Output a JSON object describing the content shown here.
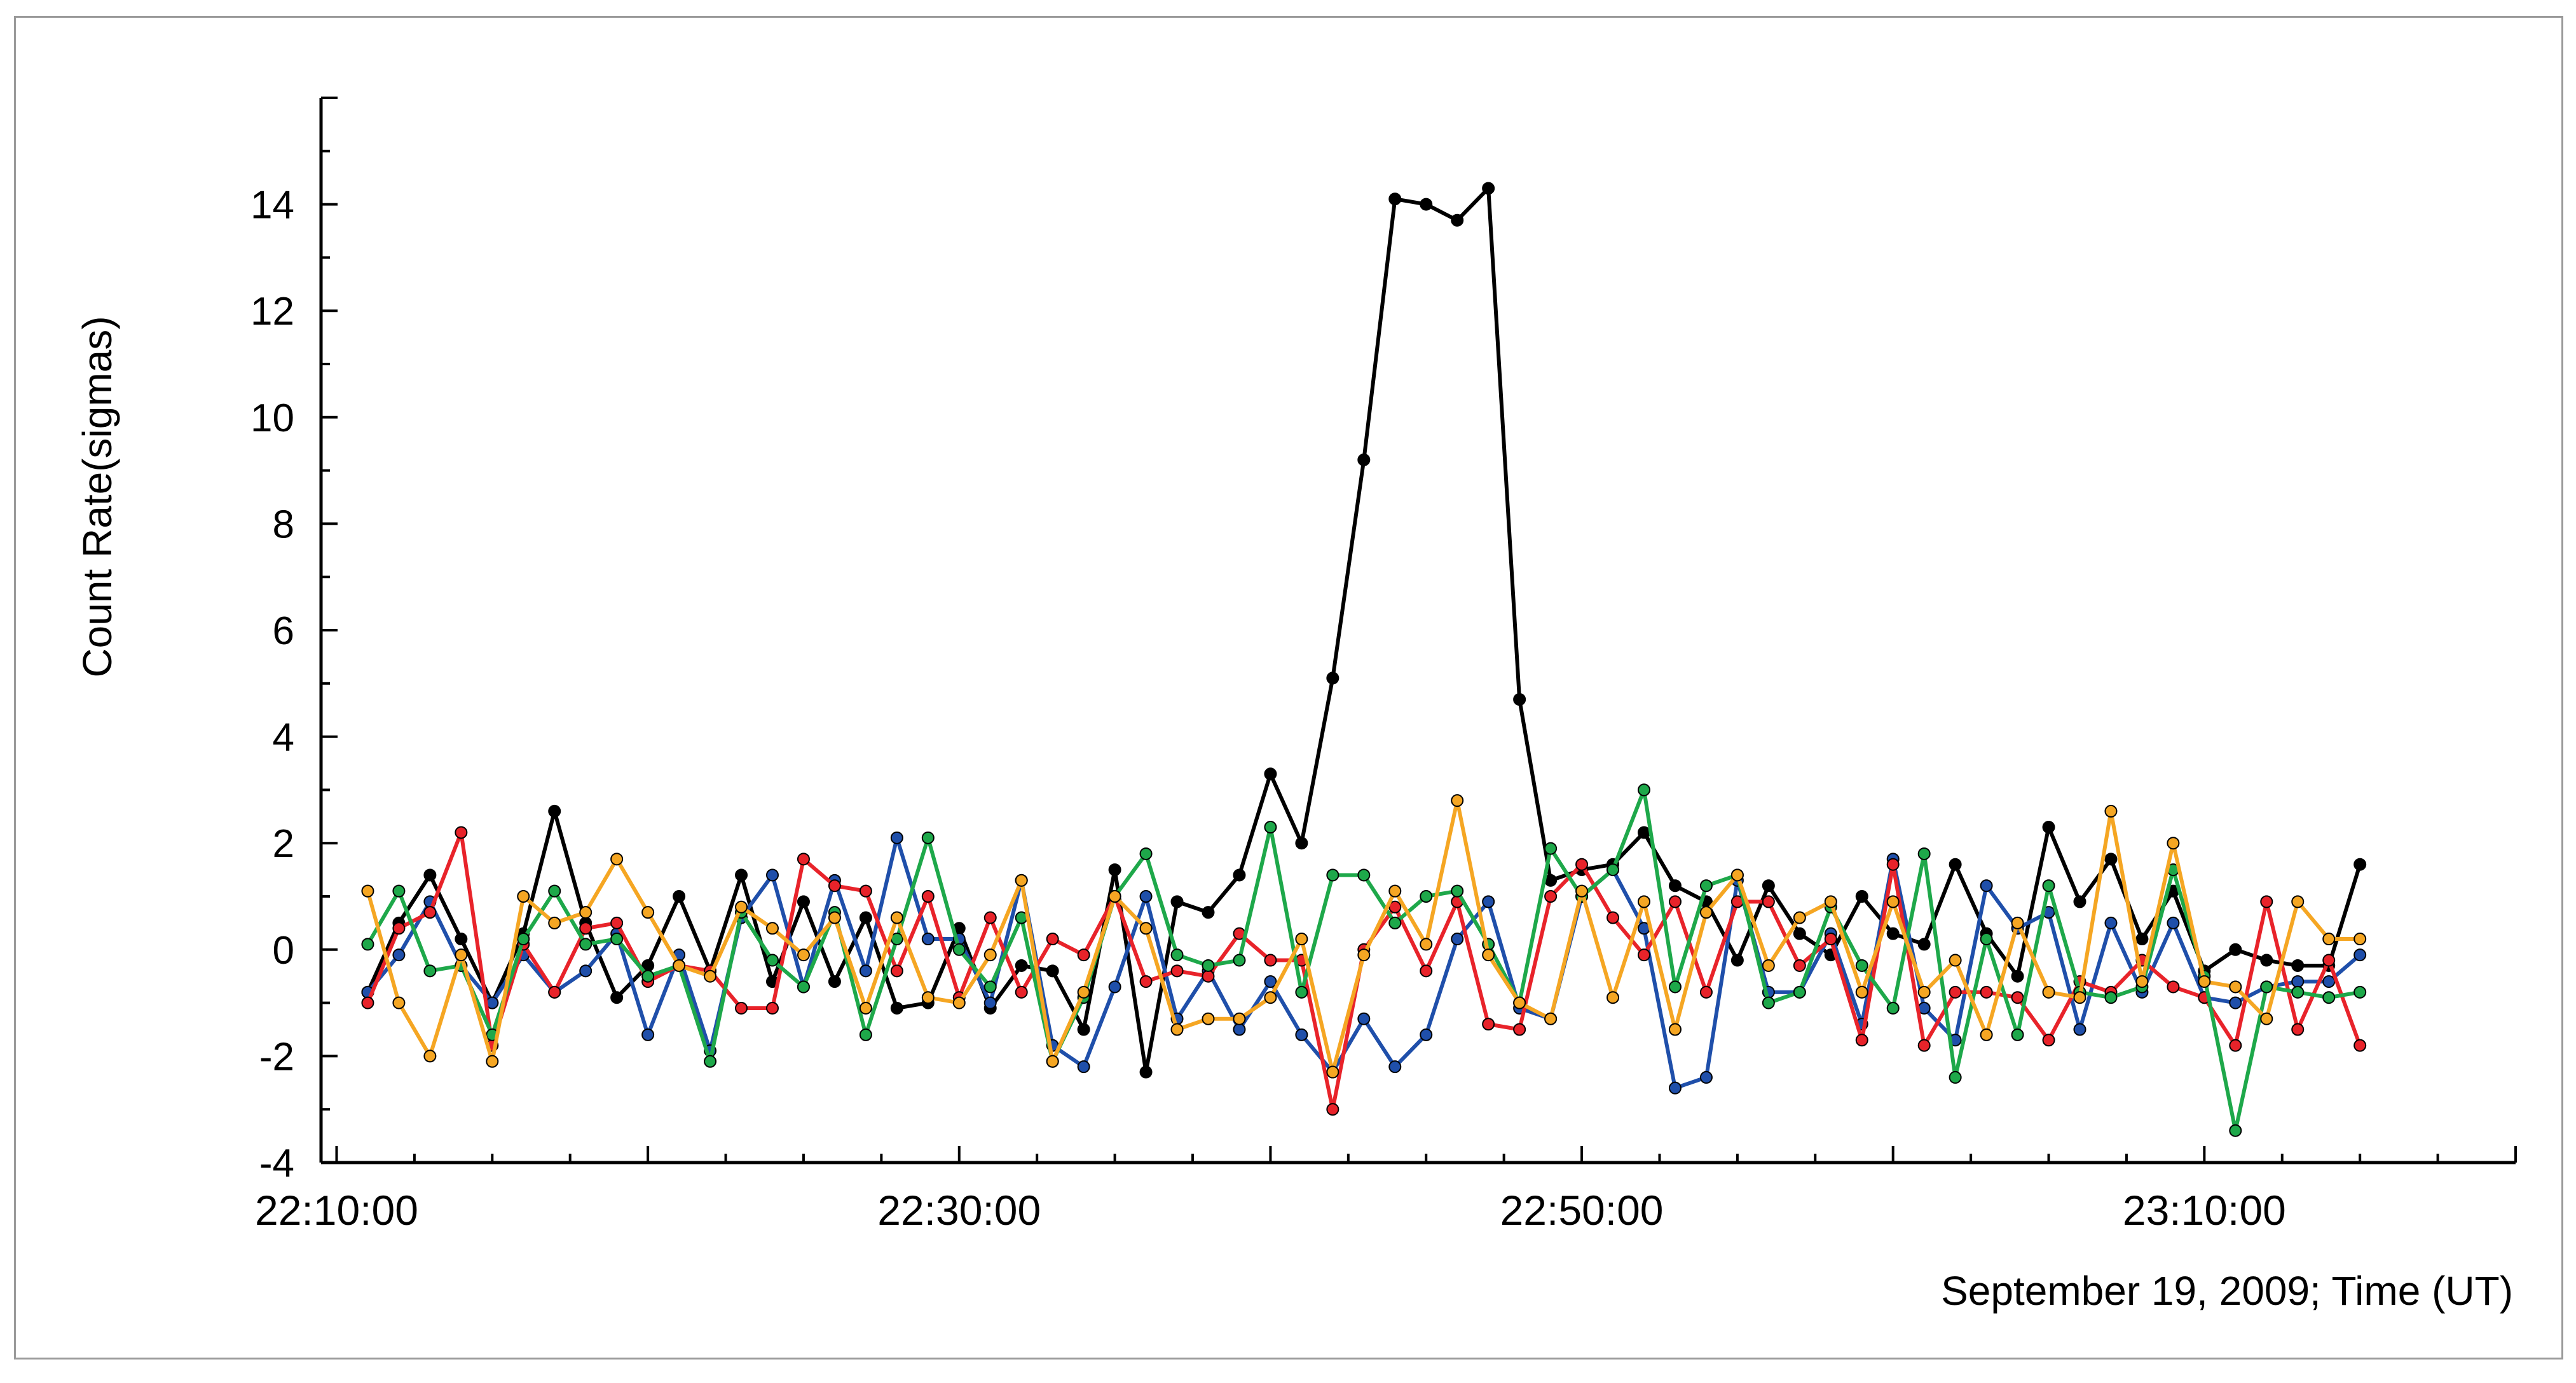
{
  "chart_data": {
    "type": "line",
    "title": "",
    "xlabel": "September 19, 2009; Time (UT)",
    "ylabel": "Count Rate(sigmas)",
    "x_unit": "minutes",
    "x_start": "22:10:00",
    "x_tick_labels": [
      "22:10:00",
      "22:30:00",
      "22:50:00",
      "23:10:00"
    ],
    "x_tick_values": [
      0,
      20,
      40,
      60
    ],
    "xlim": [
      -0.5,
      70
    ],
    "ylim": [
      -4,
      16
    ],
    "y_tick_values": [
      -4,
      -2,
      0,
      2,
      4,
      6,
      8,
      10,
      12,
      14
    ],
    "y_tick_labels": [
      "-4",
      "-2",
      "0",
      "2",
      "4",
      "6",
      "8",
      "10",
      "12",
      "14"
    ],
    "grid": false,
    "legend": "none",
    "x": [
      1,
      2,
      3,
      4,
      5,
      6,
      7,
      8,
      9,
      10,
      11,
      12,
      13,
      14,
      15,
      16,
      17,
      18,
      19,
      20,
      21,
      22,
      23,
      24,
      25,
      26,
      27,
      28,
      29,
      30,
      31,
      32,
      33,
      34,
      35,
      36,
      37,
      38,
      39,
      40,
      41,
      42,
      43,
      44,
      45,
      46,
      47,
      48,
      49,
      50,
      51,
      52,
      53,
      54,
      55,
      56,
      57,
      58,
      59,
      60,
      61,
      62,
      63,
      64,
      65
    ],
    "series": [
      {
        "color": "#000000",
        "values": [
          -0.8,
          0.5,
          1.4,
          0.2,
          -1.0,
          0.3,
          2.6,
          0.5,
          -0.9,
          -0.3,
          1.0,
          -0.4,
          1.4,
          -0.6,
          0.9,
          -0.6,
          0.6,
          -1.1,
          -1.0,
          0.4,
          -1.1,
          -0.3,
          -0.4,
          -1.5,
          1.5,
          -2.3,
          0.9,
          0.7,
          1.4,
          3.3,
          2.0,
          5.1,
          9.2,
          14.1,
          14.0,
          13.7,
          14.3,
          4.7,
          1.3,
          1.5,
          1.6,
          2.2,
          1.2,
          0.9,
          -0.2,
          1.2,
          0.3,
          -0.1,
          1.0,
          0.3,
          0.1,
          1.6,
          0.3,
          -0.5,
          2.3,
          0.9,
          1.7,
          0.2,
          1.1,
          -0.4,
          0.0,
          -0.2,
          -0.3,
          -0.3,
          1.6
        ]
      },
      {
        "color": "#1f4faa",
        "values": [
          -0.8,
          -0.1,
          0.9,
          -0.3,
          -1.0,
          -0.1,
          -0.8,
          -0.4,
          0.3,
          -1.6,
          -0.1,
          -1.9,
          0.6,
          1.4,
          -0.7,
          1.3,
          -0.4,
          2.1,
          0.2,
          0.2,
          -1.0,
          1.3,
          -1.8,
          -2.2,
          -0.7,
          1.0,
          -1.3,
          -0.4,
          -1.5,
          -0.6,
          -1.6,
          -2.3,
          -1.3,
          -2.2,
          -1.6,
          0.2,
          0.9,
          -1.1,
          -1.3,
          1.0,
          1.5,
          0.4,
          -2.6,
          -2.4,
          1.3,
          -0.8,
          -0.8,
          0.3,
          -1.4,
          1.7,
          -1.1,
          -1.7,
          1.2,
          0.4,
          0.7,
          -1.5,
          0.5,
          -0.8,
          0.5,
          -0.9,
          -1.0,
          -0.7,
          -0.6,
          -0.6,
          -0.1
        ]
      },
      {
        "color": "#e8232a",
        "values": [
          -1.0,
          0.4,
          0.7,
          2.2,
          -1.8,
          0.1,
          -0.8,
          0.4,
          0.5,
          -0.6,
          -0.3,
          -0.4,
          -1.1,
          -1.1,
          1.7,
          1.2,
          1.1,
          -0.4,
          1.0,
          -0.9,
          0.6,
          -0.8,
          0.2,
          -0.1,
          1.0,
          -0.6,
          -0.4,
          -0.5,
          0.3,
          -0.2,
          -0.2,
          -3.0,
          0.0,
          0.8,
          -0.4,
          0.9,
          -1.4,
          -1.5,
          1.0,
          1.6,
          0.6,
          -0.1,
          0.9,
          -0.8,
          0.9,
          0.9,
          -0.3,
          0.2,
          -1.7,
          1.6,
          -1.8,
          -0.8,
          -0.8,
          -0.9,
          -1.7,
          -0.6,
          -0.8,
          -0.2,
          -0.7,
          -0.9,
          -1.8,
          0.9,
          -1.5,
          -0.2,
          -1.8
        ]
      },
      {
        "color": "#1ea84a",
        "values": [
          0.1,
          1.1,
          -0.4,
          -0.3,
          -1.6,
          0.2,
          1.1,
          0.1,
          0.2,
          -0.5,
          -0.3,
          -2.1,
          0.7,
          -0.2,
          -0.7,
          0.7,
          -1.6,
          0.2,
          2.1,
          0.0,
          -0.7,
          0.6,
          -2.1,
          -0.9,
          1.0,
          1.8,
          -0.1,
          -0.3,
          -0.2,
          2.3,
          -0.8,
          1.4,
          1.4,
          0.5,
          1.0,
          1.1,
          0.1,
          -1.0,
          1.9,
          1.0,
          1.5,
          3.0,
          -0.7,
          1.2,
          1.4,
          -1.0,
          -0.8,
          0.8,
          -0.3,
          -1.1,
          1.8,
          -2.4,
          0.2,
          -1.6,
          1.2,
          -0.8,
          -0.9,
          -0.7,
          1.5,
          -0.5,
          -3.4,
          -0.7,
          -0.8,
          -0.9,
          -0.8
        ]
      },
      {
        "color": "#f5a623",
        "values": [
          1.1,
          -1.0,
          -2.0,
          -0.1,
          -2.1,
          1.0,
          0.5,
          0.7,
          1.7,
          0.7,
          -0.3,
          -0.5,
          0.8,
          0.4,
          -0.1,
          0.6,
          -1.1,
          0.6,
          -0.9,
          -1.0,
          -0.1,
          1.3,
          -2.1,
          -0.8,
          1.0,
          0.4,
          -1.5,
          -1.3,
          -1.3,
          -0.9,
          0.2,
          -2.3,
          -0.1,
          1.1,
          0.1,
          2.8,
          -0.1,
          -1.0,
          -1.3,
          1.1,
          -0.9,
          0.9,
          -1.5,
          0.7,
          1.4,
          -0.3,
          0.6,
          0.9,
          -0.8,
          0.9,
          -0.8,
          -0.2,
          -1.6,
          0.5,
          -0.8,
          -0.9,
          2.6,
          -0.6,
          2.0,
          -0.6,
          -0.7,
          -1.3,
          0.9,
          0.2,
          0.2
        ]
      }
    ]
  }
}
